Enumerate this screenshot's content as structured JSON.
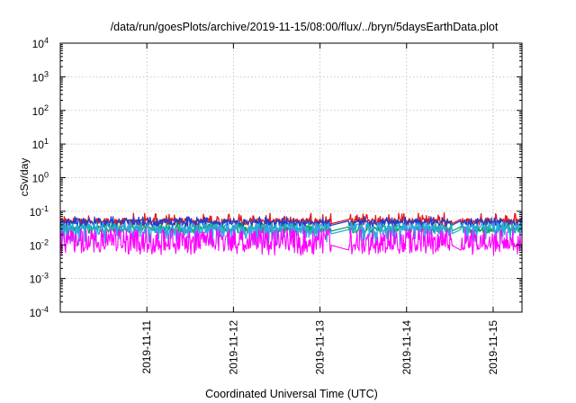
{
  "chart_data": {
    "type": "line",
    "title": "/data/run/goesPlots/archive/2019-11-15/08:00/flux/../bryn/5daysEarthData.plot",
    "xlabel": "Coordinated Universal Time (UTC)",
    "ylabel": "cSv/day",
    "yscale": "log",
    "ylim": [
      0.0001,
      10000
    ],
    "xlim": [
      "2019-11-10 00:00",
      "2019-11-15 08:00"
    ],
    "grid": true,
    "y_ticks": [
      {
        "base": "10",
        "exp": "-4"
      },
      {
        "base": "10",
        "exp": "-3"
      },
      {
        "base": "10",
        "exp": "-2"
      },
      {
        "base": "10",
        "exp": "-1"
      },
      {
        "base": "10",
        "exp": "0"
      },
      {
        "base": "10",
        "exp": "1"
      },
      {
        "base": "10",
        "exp": "2"
      },
      {
        "base": "10",
        "exp": "3"
      },
      {
        "base": "10",
        "exp": "4"
      }
    ],
    "x_ticks": [
      {
        "label": "2019-11-11",
        "date": "2019-11-11 00:00"
      },
      {
        "label": "2019-11-12",
        "date": "2019-11-12 00:00"
      },
      {
        "label": "2019-11-13",
        "date": "2019-11-13 00:00"
      },
      {
        "label": "2019-11-14",
        "date": "2019-11-14 00:00"
      },
      {
        "label": "2019-11-15",
        "date": "2019-11-15 00:00"
      }
    ],
    "gaps": [
      {
        "from": "2019-11-13 03:00",
        "to": "2019-11-13 08:00"
      },
      {
        "from": "2019-11-14 12:30",
        "to": "2019-11-14 15:00"
      }
    ],
    "series": [
      {
        "color": "#e41a1c",
        "base": 0.05,
        "spike_max": 0.09
      },
      {
        "color": "#1f3fd0",
        "base": 0.045,
        "spike_max": 0.07
      },
      {
        "color": "#00a65a",
        "base": 0.03,
        "spike_max": 0.045
      },
      {
        "color": "#2fa8e0",
        "base": 0.025,
        "spike_max": 0.055
      },
      {
        "color": "#ff00ff",
        "base": 0.007,
        "spike_max": 0.03
      }
    ]
  }
}
